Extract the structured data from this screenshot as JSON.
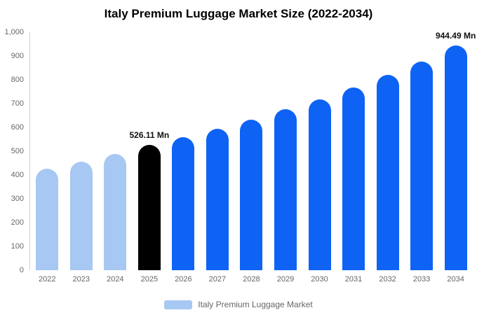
{
  "chart_data": {
    "type": "bar",
    "title": "Italy Premium Luggage Market Size (2022-2034)",
    "categories": [
      "2022",
      "2023",
      "2024",
      "2025",
      "2026",
      "2027",
      "2028",
      "2029",
      "2030",
      "2031",
      "2032",
      "2033",
      "2034"
    ],
    "values": [
      427,
      456,
      487,
      526.11,
      558,
      594,
      633,
      676,
      719,
      768,
      820,
      877,
      944.49
    ],
    "unit": "Mn",
    "value_labels": {
      "2025": "526.11 Mn",
      "2034": "944.49 Mn"
    },
    "colors": [
      "#a6c8f2",
      "#a6c8f2",
      "#a6c8f2",
      "#000000",
      "#0e63f5",
      "#0e63f5",
      "#0e63f5",
      "#0e63f5",
      "#0e63f5",
      "#0e63f5",
      "#0e63f5",
      "#0e63f5",
      "#0e63f5"
    ],
    "ylim": [
      0,
      1000
    ],
    "yticks": [
      0,
      100,
      200,
      300,
      400,
      500,
      600,
      700,
      800,
      900,
      1000
    ],
    "ytick_labels": [
      "0",
      "100",
      "200",
      "300",
      "400",
      "500",
      "600",
      "700",
      "800",
      "900",
      "1,000"
    ],
    "grid": false,
    "legend": {
      "position": "bottom",
      "label": "Italy Premium Luggage Market",
      "swatch_color": "#a6c8f2"
    }
  }
}
